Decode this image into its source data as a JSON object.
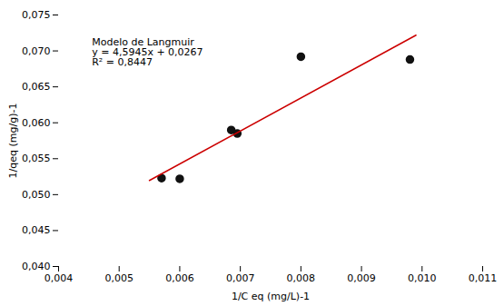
{
  "chart_data": {
    "type": "scatter",
    "xlabel": "1/C eq (mg/L)-1",
    "ylabel": "1/qeq (mg/g)-1",
    "series": [
      {
        "type": "scatter",
        "color": "#111111",
        "marker": "circle",
        "x": [
          0.0057,
          0.006,
          0.00685,
          0.00695,
          0.008,
          0.0098
        ],
        "values": [
          0.0523,
          0.0522,
          0.059,
          0.0585,
          0.0692,
          0.0688
        ]
      },
      {
        "type": "line",
        "color": "#cc0000",
        "line_style": "solid",
        "x": [
          0.0055,
          0.0099
        ],
        "values": [
          0.05196975,
          0.07218555
        ]
      }
    ],
    "xlim": [
      0.004,
      0.011
    ],
    "ylim": [
      0.04,
      0.075
    ],
    "xticks": [
      {
        "value": 0.004,
        "label": "0,004"
      },
      {
        "value": 0.005,
        "label": "0,005"
      },
      {
        "value": 0.006,
        "label": "0,006"
      },
      {
        "value": 0.007,
        "label": "0,007"
      },
      {
        "value": 0.008,
        "label": "0,008"
      },
      {
        "value": 0.009,
        "label": "0,009"
      },
      {
        "value": 0.01,
        "label": "0,010"
      },
      {
        "value": 0.011,
        "label": "0,011"
      }
    ],
    "yticks": [
      {
        "value": 0.04,
        "label": "0,040"
      },
      {
        "value": 0.045,
        "label": "0,045"
      },
      {
        "value": 0.05,
        "label": "0,050"
      },
      {
        "value": 0.055,
        "label": "0,055"
      },
      {
        "value": 0.06,
        "label": "0,060"
      },
      {
        "value": 0.065,
        "label": "0,065"
      },
      {
        "value": 0.07,
        "label": "0,070"
      },
      {
        "value": 0.075,
        "label": "0,075"
      }
    ],
    "annotations": [
      {
        "text": "Modelo de Langmuir\ny = 4,5945x + 0,0267\nR² = 0,8447",
        "x": 0.00455,
        "y": 0.0718
      }
    ],
    "grid": false
  }
}
